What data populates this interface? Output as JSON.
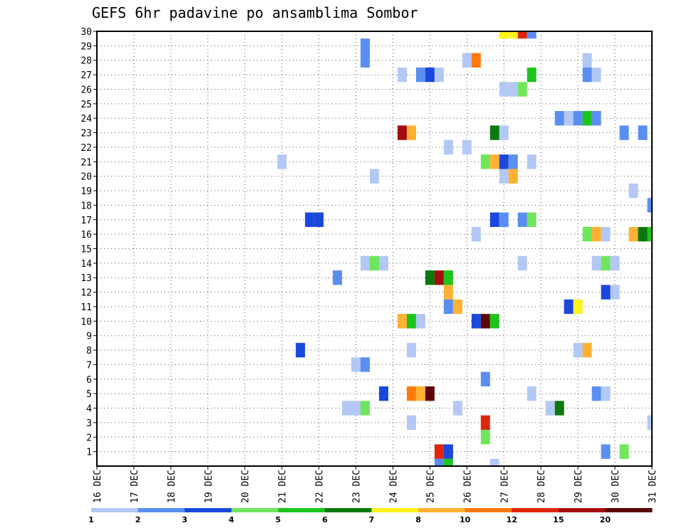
{
  "chart_data": {
    "type": "heatmap",
    "title": "GEFS 6hr padavine po ansamblima Sombor",
    "x_tick_labels": [
      "16 DEC",
      "17 DEC",
      "18 DEC",
      "19 DEC",
      "20 DEC",
      "21 DEC",
      "22 DEC",
      "23 DEC",
      "24 DEC",
      "25 DEC",
      "26 DEC",
      "27 DEC",
      "28 DEC",
      "29 DEC",
      "30 DEC",
      "31 DEC"
    ],
    "y_tick_labels": [
      "1",
      "2",
      "3",
      "4",
      "5",
      "6",
      "7",
      "8",
      "9",
      "10",
      "11",
      "12",
      "13",
      "14",
      "15",
      "16",
      "17",
      "18",
      "19",
      "20",
      "21",
      "22",
      "23",
      "24",
      "25",
      "26",
      "27",
      "28",
      "29",
      "30"
    ],
    "xlim_days": [
      16,
      31
    ],
    "ylim": [
      0,
      30
    ],
    "grid": true,
    "legend_position": "bottom",
    "legend": {
      "labels": [
        "1",
        "2",
        "3",
        "4",
        "5",
        "6",
        "7",
        "8",
        "10",
        "12",
        "15",
        "20"
      ],
      "colors": [
        "#b3c8f4",
        "#5a8ef0",
        "#1a47dc",
        "#6fe65c",
        "#1ec41e",
        "#0a780f",
        "#fff21c",
        "#ffb133",
        "#ff7a0c",
        "#e0250c",
        "#a30d0d",
        "#5c0706"
      ]
    },
    "x_values_note_unit": "day of December",
    "cells": [
      {
        "member": 30,
        "day": 27.0,
        "class": 7
      },
      {
        "member": 30,
        "day": 27.25,
        "class": 7
      },
      {
        "member": 30,
        "day": 27.5,
        "class": 10
      },
      {
        "member": 30,
        "day": 27.75,
        "class": 2
      },
      {
        "member": 29,
        "day": 23.25,
        "class": 2
      },
      {
        "member": 28,
        "day": 23.25,
        "class": 2
      },
      {
        "member": 28,
        "day": 26.0,
        "class": 1
      },
      {
        "member": 28,
        "day": 26.25,
        "class": 9
      },
      {
        "member": 28,
        "day": 29.25,
        "class": 1
      },
      {
        "member": 27,
        "day": 24.25,
        "class": 1
      },
      {
        "member": 27,
        "day": 24.75,
        "class": 2
      },
      {
        "member": 27,
        "day": 25.0,
        "class": 3
      },
      {
        "member": 27,
        "day": 25.25,
        "class": 1
      },
      {
        "member": 27,
        "day": 27.75,
        "class": 5
      },
      {
        "member": 27,
        "day": 29.25,
        "class": 2
      },
      {
        "member": 27,
        "day": 29.5,
        "class": 1
      },
      {
        "member": 26,
        "day": 27.0,
        "class": 1
      },
      {
        "member": 26,
        "day": 27.25,
        "class": 1
      },
      {
        "member": 26,
        "day": 27.5,
        "class": 4
      },
      {
        "member": 24,
        "day": 28.5,
        "class": 2
      },
      {
        "member": 24,
        "day": 28.75,
        "class": 1
      },
      {
        "member": 24,
        "day": 29.0,
        "class": 2
      },
      {
        "member": 24,
        "day": 29.25,
        "class": 5
      },
      {
        "member": 24,
        "day": 29.5,
        "class": 2
      },
      {
        "member": 23,
        "day": 24.25,
        "class": 11
      },
      {
        "member": 23,
        "day": 24.5,
        "class": 8
      },
      {
        "member": 23,
        "day": 26.75,
        "class": 6
      },
      {
        "member": 23,
        "day": 27.0,
        "class": 1
      },
      {
        "member": 23,
        "day": 30.25,
        "class": 2
      },
      {
        "member": 23,
        "day": 30.75,
        "class": 2
      },
      {
        "member": 22,
        "day": 25.5,
        "class": 1
      },
      {
        "member": 22,
        "day": 26.0,
        "class": 1
      },
      {
        "member": 21,
        "day": 21.0,
        "class": 1
      },
      {
        "member": 21,
        "day": 26.5,
        "class": 4
      },
      {
        "member": 21,
        "day": 26.75,
        "class": 8
      },
      {
        "member": 21,
        "day": 27.0,
        "class": 3
      },
      {
        "member": 21,
        "day": 27.25,
        "class": 2
      },
      {
        "member": 21,
        "day": 27.75,
        "class": 1
      },
      {
        "member": 20,
        "day": 23.5,
        "class": 1
      },
      {
        "member": 20,
        "day": 27.0,
        "class": 1
      },
      {
        "member": 20,
        "day": 27.25,
        "class": 8
      },
      {
        "member": 19,
        "day": 30.5,
        "class": 1
      },
      {
        "member": 18,
        "day": 31.0,
        "class": 2
      },
      {
        "member": 17,
        "day": 21.75,
        "class": 3
      },
      {
        "member": 17,
        "day": 22.0,
        "class": 3
      },
      {
        "member": 17,
        "day": 26.75,
        "class": 3
      },
      {
        "member": 17,
        "day": 27.0,
        "class": 2
      },
      {
        "member": 17,
        "day": 27.5,
        "class": 2
      },
      {
        "member": 17,
        "day": 27.75,
        "class": 4
      },
      {
        "member": 16,
        "day": 26.25,
        "class": 1
      },
      {
        "member": 16,
        "day": 29.25,
        "class": 4
      },
      {
        "member": 16,
        "day": 29.5,
        "class": 8
      },
      {
        "member": 16,
        "day": 29.75,
        "class": 1
      },
      {
        "member": 16,
        "day": 30.5,
        "class": 8
      },
      {
        "member": 16,
        "day": 30.75,
        "class": 6
      },
      {
        "member": 16,
        "day": 31.0,
        "class": 5
      },
      {
        "member": 14,
        "day": 23.25,
        "class": 1
      },
      {
        "member": 14,
        "day": 23.5,
        "class": 4
      },
      {
        "member": 14,
        "day": 23.75,
        "class": 1
      },
      {
        "member": 14,
        "day": 27.5,
        "class": 1
      },
      {
        "member": 14,
        "day": 29.5,
        "class": 1
      },
      {
        "member": 14,
        "day": 29.75,
        "class": 4
      },
      {
        "member": 14,
        "day": 30.0,
        "class": 1
      },
      {
        "member": 13,
        "day": 22.5,
        "class": 2
      },
      {
        "member": 13,
        "day": 25.0,
        "class": 6
      },
      {
        "member": 13,
        "day": 25.25,
        "class": 11
      },
      {
        "member": 13,
        "day": 25.5,
        "class": 5
      },
      {
        "member": 12,
        "day": 25.5,
        "class": 8
      },
      {
        "member": 12,
        "day": 29.75,
        "class": 3
      },
      {
        "member": 12,
        "day": 30.0,
        "class": 1
      },
      {
        "member": 11,
        "day": 25.5,
        "class": 2
      },
      {
        "member": 11,
        "day": 25.75,
        "class": 8
      },
      {
        "member": 11,
        "day": 28.75,
        "class": 3
      },
      {
        "member": 11,
        "day": 29.0,
        "class": 7
      },
      {
        "member": 10,
        "day": 24.25,
        "class": 8
      },
      {
        "member": 10,
        "day": 24.5,
        "class": 5
      },
      {
        "member": 10,
        "day": 24.75,
        "class": 1
      },
      {
        "member": 10,
        "day": 26.25,
        "class": 3
      },
      {
        "member": 10,
        "day": 26.5,
        "class": 12
      },
      {
        "member": 10,
        "day": 26.75,
        "class": 5
      },
      {
        "member": 8,
        "day": 21.5,
        "class": 3
      },
      {
        "member": 8,
        "day": 24.5,
        "class": 1
      },
      {
        "member": 8,
        "day": 29.0,
        "class": 1
      },
      {
        "member": 8,
        "day": 29.25,
        "class": 8
      },
      {
        "member": 7,
        "day": 23.0,
        "class": 1
      },
      {
        "member": 7,
        "day": 23.25,
        "class": 2
      },
      {
        "member": 6,
        "day": 26.5,
        "class": 2
      },
      {
        "member": 5,
        "day": 23.75,
        "class": 3
      },
      {
        "member": 5,
        "day": 24.5,
        "class": 9
      },
      {
        "member": 5,
        "day": 24.75,
        "class": 8
      },
      {
        "member": 5,
        "day": 25.0,
        "class": 12
      },
      {
        "member": 5,
        "day": 27.75,
        "class": 1
      },
      {
        "member": 5,
        "day": 29.5,
        "class": 2
      },
      {
        "member": 5,
        "day": 29.75,
        "class": 1
      },
      {
        "member": 4,
        "day": 22.75,
        "class": 1
      },
      {
        "member": 4,
        "day": 23.0,
        "class": 1
      },
      {
        "member": 4,
        "day": 23.25,
        "class": 4
      },
      {
        "member": 4,
        "day": 25.75,
        "class": 1
      },
      {
        "member": 4,
        "day": 28.25,
        "class": 1
      },
      {
        "member": 4,
        "day": 28.5,
        "class": 6
      },
      {
        "member": 3,
        "day": 24.5,
        "class": 1
      },
      {
        "member": 3,
        "day": 26.5,
        "class": 10
      },
      {
        "member": 3,
        "day": 31.0,
        "class": 1
      },
      {
        "member": 2,
        "day": 26.5,
        "class": 4
      },
      {
        "member": 1,
        "day": 25.25,
        "class": 10
      },
      {
        "member": 1,
        "day": 25.5,
        "class": 3
      },
      {
        "member": 1,
        "day": 29.75,
        "class": 2
      },
      {
        "member": 1,
        "day": 30.25,
        "class": 4
      },
      {
        "member": 0,
        "day": 25.25,
        "class": 2
      },
      {
        "member": 0,
        "day": 25.5,
        "class": 5
      },
      {
        "member": 0,
        "day": 26.75,
        "class": 1
      }
    ]
  }
}
